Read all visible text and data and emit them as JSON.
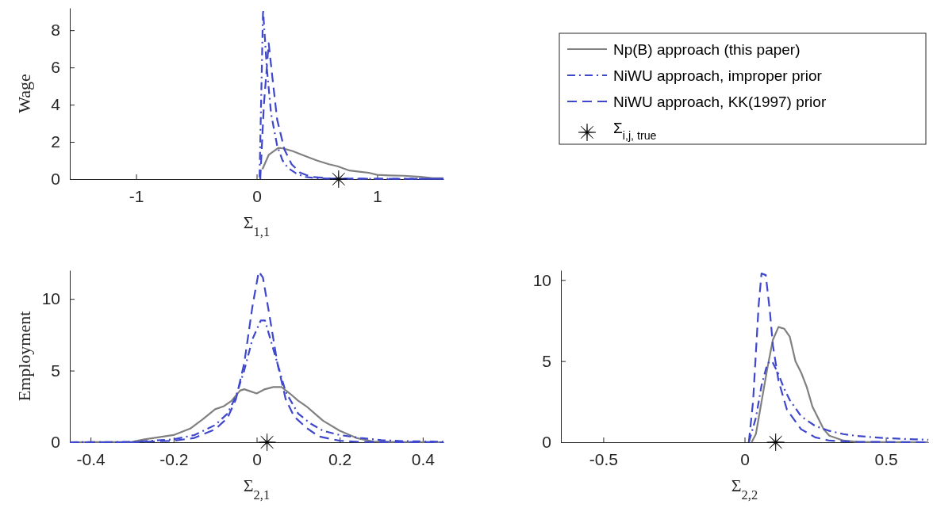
{
  "chart_data": [
    {
      "type": "line",
      "xlabel": "Σ$_{1,1}$",
      "ylabel": "Wage",
      "xlim": [
        -1.55,
        1.55
      ],
      "xticks": [
        -1,
        0,
        1
      ],
      "ylim": [
        0,
        9.2
      ],
      "yticks": [
        0,
        2,
        4,
        6,
        8
      ],
      "legend": "right",
      "series": [
        {
          "name": "Np(B) approach (this paper)",
          "color": "#808080",
          "line_style": "solid",
          "x": [
            0.048,
            0.1,
            0.18,
            0.22,
            0.3,
            0.4,
            0.5,
            0.6,
            0.67,
            0.77,
            0.85,
            0.93,
            1.0,
            1.1,
            1.22,
            1.36,
            1.46,
            1.55
          ],
          "values": [
            0.53,
            1.3,
            1.68,
            1.65,
            1.5,
            1.25,
            1.0,
            0.8,
            0.69,
            0.46,
            0.4,
            0.34,
            0.23,
            0.2,
            0.18,
            0.12,
            0.05,
            0.05
          ]
        },
        {
          "name": "NiWU approach, improper prior",
          "color": "#3f48cc",
          "line_style": "dashdot",
          "x": [
            0.024,
            0.053,
            0.084,
            0.12,
            0.17,
            0.215,
            0.26,
            0.33,
            0.4,
            0.5,
            0.7,
            1.0,
            1.55
          ],
          "values": [
            0.1,
            9.1,
            6,
            3.5,
            1.8,
            1.0,
            0.6,
            0.3,
            0.12,
            0.04,
            0.02,
            0.02,
            0.02
          ]
        },
        {
          "name": "NiWU approach, KK(1997) prior",
          "color": "#3f48cc",
          "line_style": "dashed",
          "x": [
            0.03,
            0.06,
            0.1,
            0.13,
            0.17,
            0.23,
            0.29,
            0.36,
            0.45,
            0.62,
            1.0,
            1.55
          ],
          "values": [
            0,
            4,
            7.3,
            5.5,
            3.2,
            1.6,
            0.8,
            0.35,
            0.12,
            0.03,
            0.02,
            0.02
          ]
        },
        {
          "name": "Σ$_{i,j, true}$",
          "type": "scatter",
          "marker": "star",
          "color": "#000000",
          "x": [
            0.68
          ],
          "values": [
            0
          ]
        }
      ]
    },
    {
      "type": "line",
      "xlabel": "Σ$_{2,1}$",
      "ylabel": "Employment",
      "xlim": [
        -0.45,
        0.45
      ],
      "xticks": [
        -0.4,
        -0.2,
        0,
        0.2,
        0.4
      ],
      "ylim": [
        0,
        12
      ],
      "yticks": [
        0,
        5,
        10
      ],
      "series": [
        {
          "color": "#808080",
          "line_style": "solid",
          "x": [
            -0.45,
            -0.3,
            -0.27,
            -0.2,
            -0.16,
            -0.13,
            -0.1,
            -0.08,
            -0.06,
            -0.04,
            -0.03,
            -0.02,
            0,
            0.02,
            0.04,
            0.06,
            0.08,
            0.1,
            0.12,
            0.14,
            0.16,
            0.2,
            0.24,
            0.28,
            0.32,
            0.45
          ],
          "values": [
            0,
            0.02,
            0.2,
            0.5,
            0.95,
            1.6,
            2.3,
            2.5,
            2.9,
            3.6,
            3.7,
            3.6,
            3.4,
            3.7,
            3.85,
            3.85,
            3.4,
            2.9,
            2.5,
            2.0,
            1.5,
            0.8,
            0.3,
            0.05,
            0.02,
            0
          ]
        },
        {
          "color": "#3f48cc",
          "line_style": "dashdot",
          "x": [
            -0.45,
            -0.3,
            -0.2,
            -0.15,
            -0.1,
            -0.07,
            -0.05,
            -0.03,
            -0.01,
            0.01,
            0.02,
            0.03,
            0.05,
            0.07,
            0.1,
            0.13,
            0.16,
            0.2,
            0.25,
            0.3,
            0.35,
            0.45
          ],
          "values": [
            0,
            0.02,
            0.2,
            0.5,
            1.2,
            2.0,
            3.2,
            5.0,
            7.2,
            8.5,
            8.5,
            7.5,
            5.5,
            3.5,
            2.0,
            1.3,
            0.8,
            0.5,
            0.3,
            0.15,
            0.08,
            0.03
          ]
        },
        {
          "color": "#3f48cc",
          "line_style": "dashed",
          "x": [
            -0.45,
            -0.3,
            -0.2,
            -0.15,
            -0.1,
            -0.07,
            -0.05,
            -0.03,
            -0.01,
            0.005,
            0.015,
            0.03,
            0.05,
            0.07,
            0.09,
            0.12,
            0.15,
            0.2,
            0.25,
            0.45
          ],
          "values": [
            0,
            0,
            0.1,
            0.3,
            0.9,
            1.7,
            3,
            5.5,
            9.5,
            11.9,
            11.5,
            9,
            5.5,
            3,
            1.8,
            1.0,
            0.4,
            0.1,
            0.02,
            0
          ]
        },
        {
          "type": "scatter",
          "marker": "star",
          "color": "#000000",
          "x": [
            0.025
          ],
          "values": [
            0
          ]
        }
      ]
    },
    {
      "type": "line",
      "xlabel": "Σ$_{2,2}$",
      "xlim": [
        -0.65,
        0.65
      ],
      "xticks": [
        -0.5,
        0,
        0.5
      ],
      "ylim": [
        0,
        10.6
      ],
      "yticks": [
        0,
        5,
        10
      ],
      "series": [
        {
          "color": "#808080",
          "line_style": "solid",
          "x": [
            0.025,
            0.04,
            0.06,
            0.08,
            0.1,
            0.12,
            0.14,
            0.16,
            0.18,
            0.2,
            0.22,
            0.24,
            0.26,
            0.28,
            0.3,
            0.35,
            0.4,
            0.65
          ],
          "values": [
            0,
            0.5,
            2.5,
            4.5,
            6.3,
            7.1,
            7.0,
            6.5,
            5.0,
            4.3,
            3.4,
            2.2,
            1.5,
            0.8,
            0.4,
            0.1,
            0.02,
            0
          ]
        },
        {
          "color": "#3f48cc",
          "line_style": "dashdot",
          "x": [
            0.015,
            0.04,
            0.06,
            0.08,
            0.09,
            0.1,
            0.12,
            0.14,
            0.16,
            0.2,
            0.25,
            0.3,
            0.35,
            0.4,
            0.5,
            0.6,
            0.65
          ],
          "values": [
            0,
            1.5,
            3.5,
            4.8,
            5.0,
            4.9,
            4.2,
            3.3,
            2.6,
            1.6,
            1.0,
            0.7,
            0.5,
            0.38,
            0.25,
            0.18,
            0.15
          ]
        },
        {
          "color": "#3f48cc",
          "line_style": "dashed",
          "x": [
            0.015,
            0.03,
            0.05,
            0.06,
            0.075,
            0.09,
            0.1,
            0.12,
            0.15,
            0.2,
            0.25,
            0.3,
            0.4,
            0.65
          ],
          "values": [
            0,
            2.5,
            8.5,
            10.4,
            10.3,
            8,
            6,
            3.8,
            2.0,
            0.8,
            0.3,
            0.1,
            0.02,
            0
          ]
        },
        {
          "type": "scatter",
          "marker": "star",
          "color": "#000000",
          "x": [
            0.11
          ],
          "values": [
            0
          ]
        }
      ]
    }
  ]
}
